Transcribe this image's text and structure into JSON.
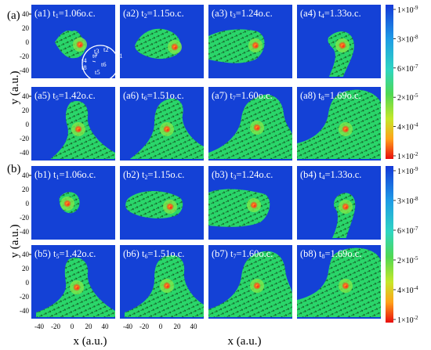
{
  "figure": {
    "groups": [
      {
        "label": "(a)",
        "rows": [
          [
            {
              "tag": "(a1)",
              "sym": "t",
              "sub": "1",
              "value": "=1.06o.c."
            },
            {
              "tag": "(a2)",
              "sym": "t",
              "sub": "2",
              "value": "=1.15o.c."
            },
            {
              "tag": "(a3)",
              "sym": "t",
              "sub": "3",
              "value": "=1.24o.c."
            },
            {
              "tag": "(a4)",
              "sym": "t",
              "sub": "4",
              "value": "=1.33o.c."
            }
          ],
          [
            {
              "tag": "(a5)",
              "sym": "t",
              "sub": "5",
              "value": "=1.42o.c."
            },
            {
              "tag": "(a6)",
              "sym": "t",
              "sub": "6",
              "value": "=1.51o.c."
            },
            {
              "tag": "(a7)",
              "sym": "t",
              "sub": "7",
              "value": "=1.60o.c."
            },
            {
              "tag": "(a8)",
              "sym": "t",
              "sub": "8",
              "value": "=1.69o.c."
            }
          ]
        ]
      },
      {
        "label": "(b)",
        "rows": [
          [
            {
              "tag": "(b1)",
              "sym": "t",
              "sub": "1",
              "value": "=1.06o.c."
            },
            {
              "tag": "(b2)",
              "sym": "t",
              "sub": "2",
              "value": "=1.15o.c."
            },
            {
              "tag": "(b3)",
              "sym": "t",
              "sub": "3",
              "value": "=1.24o.c."
            },
            {
              "tag": "(b4)",
              "sym": "t",
              "sub": "4",
              "value": "=1.33o.c."
            }
          ],
          [
            {
              "tag": "(b5)",
              "sym": "t",
              "sub": "5",
              "value": "=1.42o.c."
            },
            {
              "tag": "(b6)",
              "sym": "t",
              "sub": "6",
              "value": "=1.51o.c."
            },
            {
              "tag": "(b7)",
              "sym": "t",
              "sub": "7",
              "value": "=1.60o.c."
            },
            {
              "tag": "(b8)",
              "sym": "t",
              "sub": "8",
              "value": "=1.69o.c."
            }
          ]
        ]
      }
    ],
    "y_axis_label": "y (a.u.)",
    "x_axis_label": "x (a.u.)",
    "y_ticks": [
      "40",
      "20",
      "0",
      "-20",
      "-40"
    ],
    "x_ticks": [
      "-40",
      "-20",
      "0",
      "20",
      "40"
    ],
    "inset_labels": [
      "t1",
      "t2",
      "t3",
      "t4",
      "t5",
      "t6",
      "t7",
      "t8"
    ],
    "colorbar_labels": [
      {
        "mant": "1×10",
        "exp": "-9"
      },
      {
        "mant": "3×10",
        "exp": "-8"
      },
      {
        "mant": "6×10",
        "exp": "-7"
      },
      {
        "mant": "2×10",
        "exp": "-5"
      },
      {
        "mant": "4×10",
        "exp": "-4"
      },
      {
        "mant": "1×10",
        "exp": "-2"
      }
    ],
    "colors": {
      "background": "#1441d6",
      "plume": "#2ad66a",
      "plume_light": "#7fe84a",
      "hot": "#ff3a1a",
      "core": "#ffd21a",
      "arrow": "#0c2a0c"
    }
  }
}
